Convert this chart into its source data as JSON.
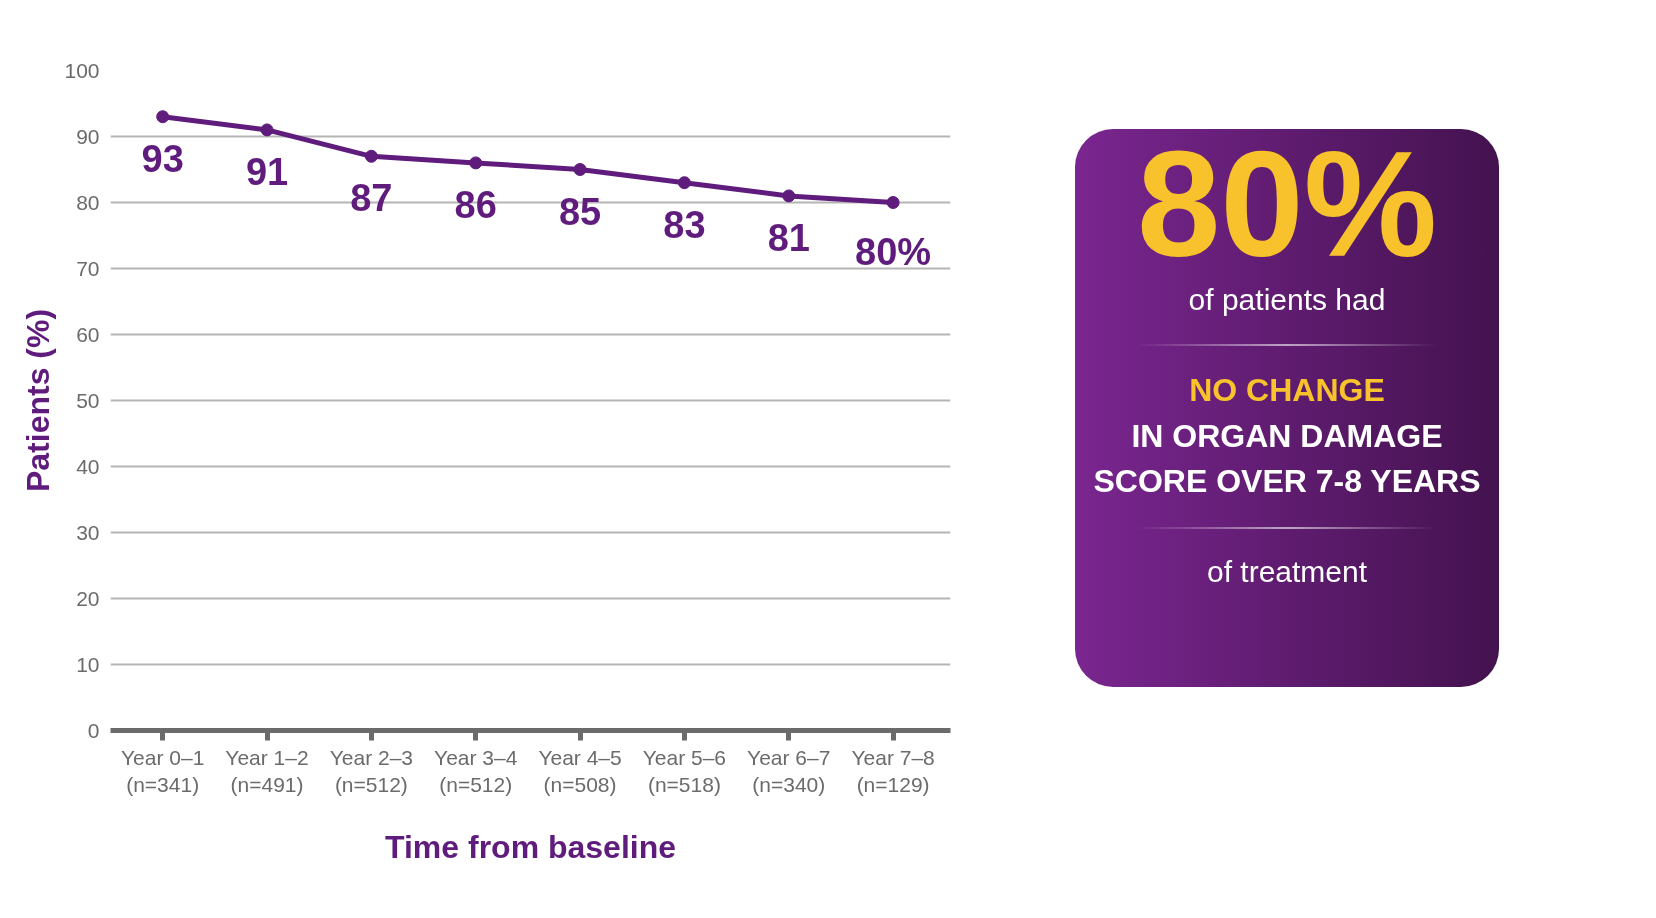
{
  "chart_data": [
    {
      "type": "line",
      "xlabel": "Time from baseline",
      "ylabel": "Patients (%)",
      "categories": [
        "Year 0–1\n(n=341)",
        "Year 1–2\n(n=491)",
        "Year 2–3\n(n=512)",
        "Year 3–4\n(n=512)",
        "Year 4–5\n(n=508)",
        "Year 5–6\n(n=518)",
        "Year 6–7\n(n=340)",
        "Year 7–8\n(n=129)"
      ],
      "series": [
        {
          "color": "#5f1c7d",
          "values": [
            93,
            91,
            87,
            86,
            85,
            83,
            81,
            80
          ],
          "value_labels": [
            "93",
            "91",
            "87",
            "86",
            "85",
            "83",
            "81",
            "80%"
          ]
        }
      ],
      "ylim": [
        0,
        100
      ],
      "yticks": [
        0,
        10,
        20,
        30,
        40,
        50,
        60,
        70,
        80,
        90,
        100
      ],
      "grid": "y",
      "marker": "circle",
      "line_style": "solid"
    },
    {
      "type": "other",
      "annotations": [
        "80%",
        "of patients had",
        "NO CHANGE",
        "IN ORGAN DAMAGE",
        "SCORE OVER 7-8 YEARS",
        "of treatment"
      ]
    }
  ]
}
